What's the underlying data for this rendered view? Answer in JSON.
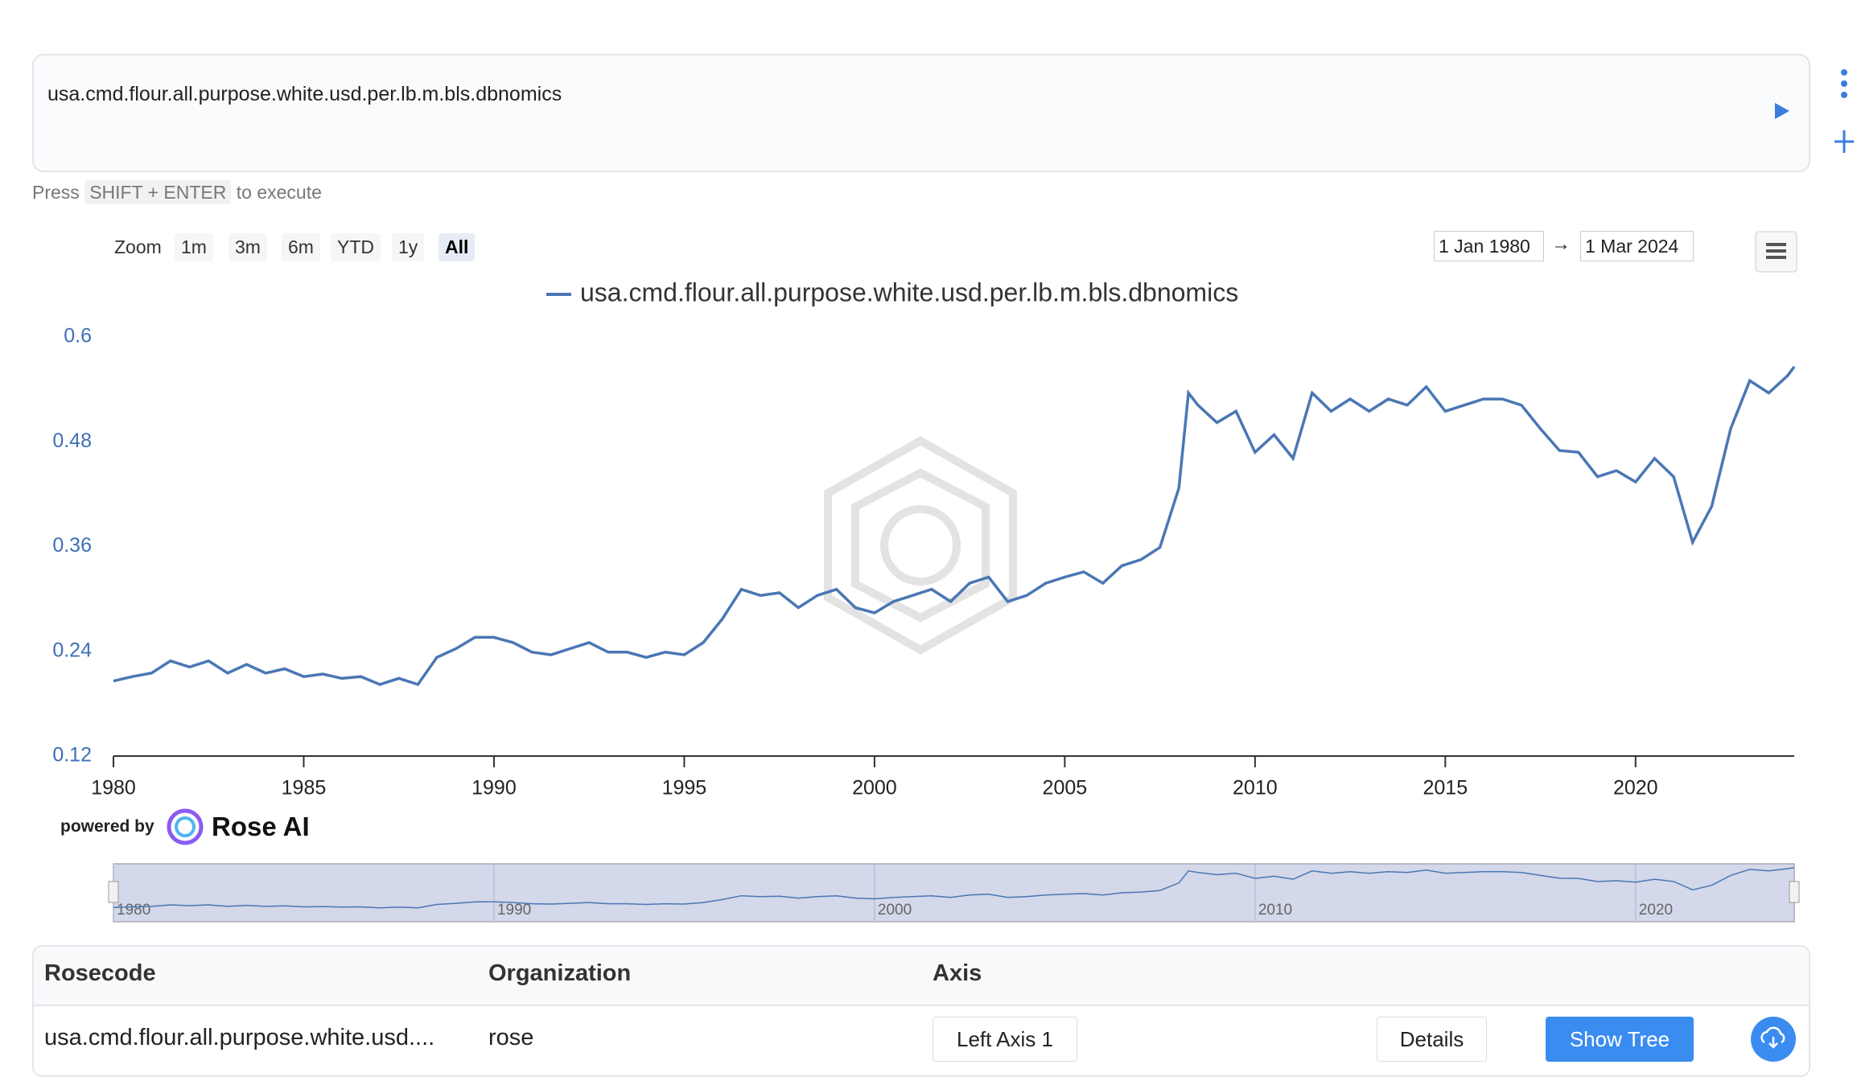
{
  "query": "usa.cmd.flour.all.purpose.white.usd.per.lb.m.bls.dbnomics",
  "hint": {
    "press": "Press",
    "keys": "SHIFT + ENTER",
    "rest": "to execute"
  },
  "zoom": {
    "label": "Zoom",
    "buttons": [
      "1m",
      "3m",
      "6m",
      "YTD",
      "1y",
      "All"
    ],
    "selected": "All"
  },
  "range": {
    "from": "1 Jan 1980",
    "arrow": "→",
    "to": "1 Mar 2024"
  },
  "powered": {
    "by": "powered by",
    "brand": "Rose AI"
  },
  "table": {
    "headers": [
      "Rosecode",
      "Organization",
      "Axis"
    ],
    "row": [
      "usa.cmd.flour.all.purpose.white.usd....",
      "rose",
      "Left Axis 1"
    ],
    "buttons": [
      "Details",
      "Show Tree"
    ]
  },
  "chart_data": {
    "type": "line",
    "x": [
      1980,
      1980.5,
      1981,
      1981.5,
      1982,
      1982.5,
      1983,
      1983.5,
      1984,
      1984.5,
      1985,
      1985.5,
      1986,
      1986.5,
      1987,
      1987.5,
      1988,
      1988.5,
      1989,
      1989.5,
      1990,
      1990.5,
      1991,
      1991.5,
      1992,
      1992.5,
      1993,
      1993.5,
      1994,
      1994.5,
      1995,
      1995.5,
      1996,
      1996.5,
      1997,
      1997.5,
      1998,
      1998.5,
      1999,
      1999.5,
      2000,
      2000.5,
      2001,
      2001.5,
      2002,
      2002.5,
      2003,
      2003.5,
      2004,
      2004.5,
      2005,
      2005.5,
      2006,
      2006.5,
      2007,
      2007.5,
      2008,
      2008.25,
      2008.5,
      2009,
      2009.5,
      2010,
      2010.5,
      2011,
      2011.5,
      2012,
      2012.5,
      2013,
      2013.5,
      2014,
      2014.5,
      2015,
      2015.5,
      2016,
      2016.5,
      2017,
      2017.5,
      2018,
      2018.5,
      2019,
      2019.5,
      2020,
      2020.5,
      2021,
      2021.5,
      2022,
      2022.5,
      2023,
      2023.5,
      2024,
      2024.17
    ],
    "series": [
      {
        "name": "usa.cmd.flour.all.purpose.white.usd.per.lb.m.bls.dbnomics",
        "color": "#4a77b4",
        "values": [
          0.206,
          0.211,
          0.215,
          0.229,
          0.222,
          0.229,
          0.215,
          0.225,
          0.215,
          0.22,
          0.211,
          0.214,
          0.209,
          0.211,
          0.202,
          0.209,
          0.202,
          0.233,
          0.243,
          0.256,
          0.256,
          0.25,
          0.239,
          0.236,
          0.243,
          0.25,
          0.239,
          0.239,
          0.233,
          0.239,
          0.236,
          0.25,
          0.277,
          0.311,
          0.304,
          0.307,
          0.29,
          0.304,
          0.311,
          0.29,
          0.284,
          0.297,
          0.304,
          0.311,
          0.297,
          0.318,
          0.325,
          0.297,
          0.304,
          0.318,
          0.325,
          0.331,
          0.318,
          0.338,
          0.345,
          0.359,
          0.427,
          0.536,
          0.522,
          0.502,
          0.515,
          0.468,
          0.488,
          0.461,
          0.536,
          0.515,
          0.529,
          0.515,
          0.529,
          0.522,
          0.543,
          0.515,
          0.522,
          0.529,
          0.529,
          0.522,
          0.495,
          0.47,
          0.468,
          0.44,
          0.447,
          0.434,
          0.461,
          0.44,
          0.365,
          0.406,
          0.495,
          0.55,
          0.536,
          0.556,
          0.566
        ]
      }
    ],
    "xlim": [
      1980,
      2024.17
    ],
    "xticks": [
      1980,
      1985,
      1990,
      1995,
      2000,
      2005,
      2010,
      2015,
      2020
    ],
    "ylim": [
      0.12,
      0.6
    ],
    "yticks": [
      0.12,
      0.24,
      0.36,
      0.48,
      0.6
    ],
    "navigator_xticks": [
      1980,
      1990,
      2000,
      2010,
      2020
    ]
  }
}
